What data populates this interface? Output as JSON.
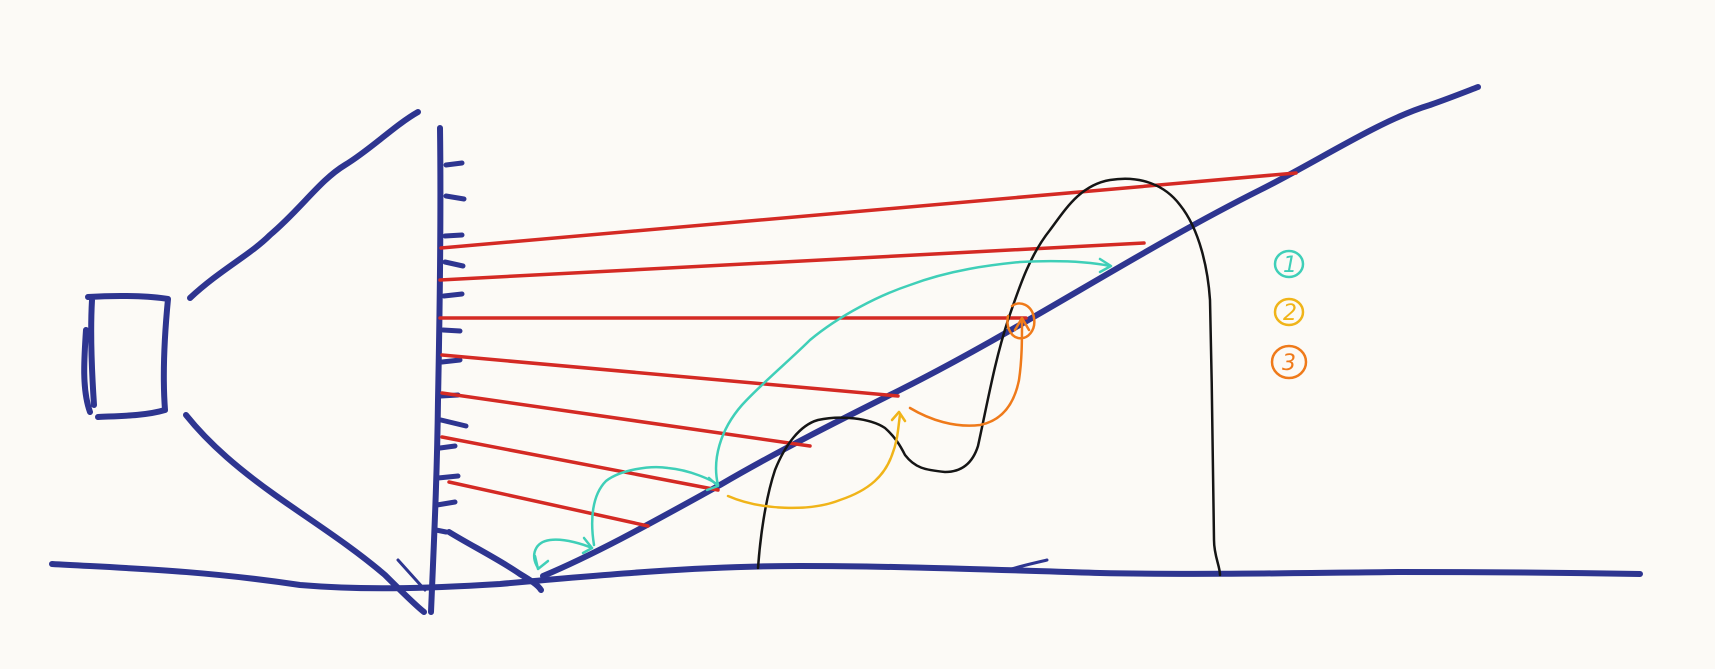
{
  "colors": {
    "background": "#fcfaf6",
    "structure": "#2e3590",
    "rays": "#d42a24",
    "profile": "#151515",
    "step1": "#3fcfb8",
    "step2": "#f0b419",
    "step3": "#ef7a1a"
  },
  "legend": {
    "items": [
      {
        "label": "1",
        "color_key": "step1"
      },
      {
        "label": "2",
        "color_key": "step2"
      },
      {
        "label": "3",
        "color_key": "step3"
      }
    ]
  }
}
